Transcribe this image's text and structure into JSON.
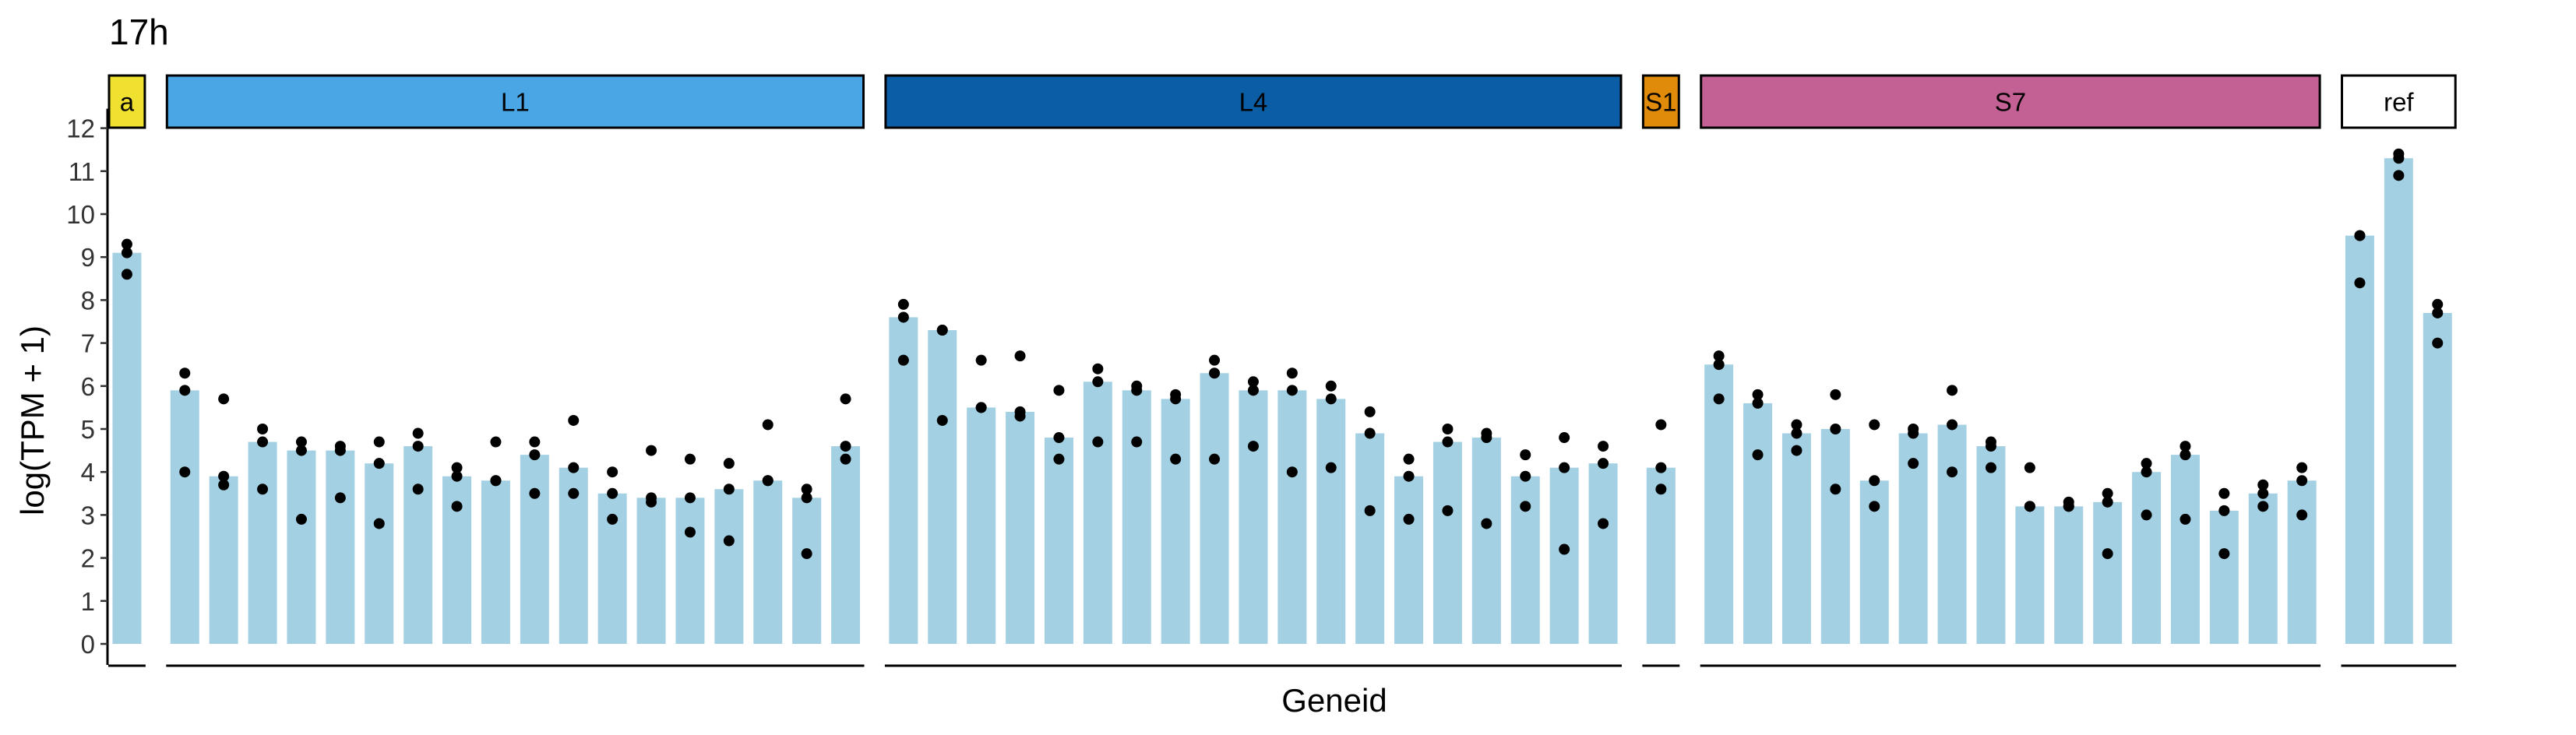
{
  "chart_data": {
    "type": "bar",
    "title": "17h",
    "xlabel": "Geneid",
    "ylabel": "log(TPM + 1)",
    "ylim": [
      0,
      12
    ],
    "yticks": [
      0,
      1,
      2,
      3,
      4,
      5,
      6,
      7,
      8,
      9,
      10,
      11,
      12
    ],
    "grid": false,
    "bar_color": "#A3D1E3",
    "point_color": "#000000",
    "facets": [
      {
        "label": "a",
        "color": "#F0E130",
        "text_color": "#000000",
        "bars": [
          {
            "value": 9.1,
            "points": [
              9.3,
              9.1,
              8.6
            ]
          }
        ]
      },
      {
        "label": "L1",
        "color": "#4AA6E4",
        "text_color": "#000000",
        "bars": [
          {
            "value": 5.9,
            "points": [
              6.3,
              5.9,
              4.0
            ]
          },
          {
            "value": 3.9,
            "points": [
              5.7,
              3.9,
              3.7
            ]
          },
          {
            "value": 4.7,
            "points": [
              5.0,
              4.7,
              3.6
            ]
          },
          {
            "value": 4.5,
            "points": [
              4.7,
              4.5,
              2.9
            ]
          },
          {
            "value": 4.5,
            "points": [
              4.6,
              4.5,
              3.4
            ]
          },
          {
            "value": 4.2,
            "points": [
              4.7,
              4.2,
              2.8
            ]
          },
          {
            "value": 4.6,
            "points": [
              4.9,
              4.6,
              3.6
            ]
          },
          {
            "value": 3.9,
            "points": [
              4.1,
              3.9,
              3.2
            ]
          },
          {
            "value": 3.8,
            "points": [
              4.7,
              3.8,
              3.8
            ]
          },
          {
            "value": 4.4,
            "points": [
              4.7,
              4.4,
              3.5
            ]
          },
          {
            "value": 4.1,
            "points": [
              5.2,
              4.1,
              3.5
            ]
          },
          {
            "value": 3.5,
            "points": [
              4.0,
              3.5,
              2.9
            ]
          },
          {
            "value": 3.4,
            "points": [
              4.5,
              3.4,
              3.3
            ]
          },
          {
            "value": 3.4,
            "points": [
              4.3,
              3.4,
              2.6
            ]
          },
          {
            "value": 3.6,
            "points": [
              4.2,
              3.6,
              2.4
            ]
          },
          {
            "value": 3.8,
            "points": [
              5.1,
              3.8,
              3.8
            ]
          },
          {
            "value": 3.4,
            "points": [
              3.6,
              3.4,
              2.1
            ]
          },
          {
            "value": 4.6,
            "points": [
              5.7,
              4.6,
              4.3
            ]
          }
        ]
      },
      {
        "label": "L4",
        "color": "#0B5EA5",
        "text_color": "#000000",
        "bars": [
          {
            "value": 7.6,
            "points": [
              7.9,
              7.6,
              6.6
            ]
          },
          {
            "value": 7.3,
            "points": [
              7.3,
              7.3,
              5.2
            ]
          },
          {
            "value": 5.5,
            "points": [
              6.6,
              5.5,
              5.5
            ]
          },
          {
            "value": 5.4,
            "points": [
              6.7,
              5.4,
              5.3
            ]
          },
          {
            "value": 4.8,
            "points": [
              5.9,
              4.8,
              4.3
            ]
          },
          {
            "value": 6.1,
            "points": [
              6.4,
              6.1,
              4.7
            ]
          },
          {
            "value": 5.9,
            "points": [
              6.0,
              5.9,
              4.7
            ]
          },
          {
            "value": 5.7,
            "points": [
              5.8,
              5.7,
              4.3
            ]
          },
          {
            "value": 6.3,
            "points": [
              6.6,
              6.3,
              4.3
            ]
          },
          {
            "value": 5.9,
            "points": [
              6.1,
              5.9,
              4.6
            ]
          },
          {
            "value": 5.9,
            "points": [
              6.3,
              5.9,
              4.0
            ]
          },
          {
            "value": 5.7,
            "points": [
              6.0,
              5.7,
              4.1
            ]
          },
          {
            "value": 4.9,
            "points": [
              5.4,
              4.9,
              3.1
            ]
          },
          {
            "value": 3.9,
            "points": [
              4.3,
              3.9,
              2.9
            ]
          },
          {
            "value": 4.7,
            "points": [
              5.0,
              4.7,
              3.1
            ]
          },
          {
            "value": 4.8,
            "points": [
              4.9,
              4.8,
              2.8
            ]
          },
          {
            "value": 3.9,
            "points": [
              4.4,
              3.9,
              3.2
            ]
          },
          {
            "value": 4.1,
            "points": [
              4.8,
              4.1,
              2.2
            ]
          },
          {
            "value": 4.2,
            "points": [
              4.6,
              4.2,
              2.8
            ]
          }
        ]
      },
      {
        "label": "S1",
        "color": "#E08B0A",
        "text_color": "#000000",
        "bars": [
          {
            "value": 4.1,
            "points": [
              5.1,
              4.1,
              3.6
            ]
          }
        ]
      },
      {
        "label": "S7",
        "color": "#C36194",
        "text_color": "#000000",
        "bars": [
          {
            "value": 6.5,
            "points": [
              6.7,
              6.5,
              5.7
            ]
          },
          {
            "value": 5.6,
            "points": [
              5.8,
              5.6,
              4.4
            ]
          },
          {
            "value": 4.9,
            "points": [
              5.1,
              4.9,
              4.5
            ]
          },
          {
            "value": 5.0,
            "points": [
              5.8,
              5.0,
              3.6
            ]
          },
          {
            "value": 3.8,
            "points": [
              5.1,
              3.8,
              3.2
            ]
          },
          {
            "value": 4.9,
            "points": [
              5.0,
              4.9,
              4.2
            ]
          },
          {
            "value": 5.1,
            "points": [
              5.9,
              5.1,
              4.0
            ]
          },
          {
            "value": 4.6,
            "points": [
              4.7,
              4.6,
              4.1
            ]
          },
          {
            "value": 3.2,
            "points": [
              4.1,
              3.2,
              3.2
            ]
          },
          {
            "value": 3.2,
            "points": [
              3.3,
              3.2,
              3.2
            ]
          },
          {
            "value": 3.3,
            "points": [
              3.5,
              3.3,
              2.1
            ]
          },
          {
            "value": 4.0,
            "points": [
              4.2,
              4.0,
              3.0
            ]
          },
          {
            "value": 4.4,
            "points": [
              4.6,
              4.4,
              2.9
            ]
          },
          {
            "value": 3.1,
            "points": [
              3.5,
              3.1,
              2.1
            ]
          },
          {
            "value": 3.5,
            "points": [
              3.7,
              3.5,
              3.2
            ]
          },
          {
            "value": 3.8,
            "points": [
              4.1,
              3.8,
              3.0
            ]
          }
        ]
      },
      {
        "label": "ref",
        "color": "#FFFFFF",
        "text_color": "#000000",
        "bars": [
          {
            "value": 9.5,
            "points": [
              9.5,
              9.5,
              8.4
            ]
          },
          {
            "value": 11.3,
            "points": [
              11.4,
              11.3,
              10.9
            ]
          },
          {
            "value": 7.7,
            "points": [
              7.9,
              7.7,
              7.0
            ]
          }
        ]
      }
    ]
  }
}
